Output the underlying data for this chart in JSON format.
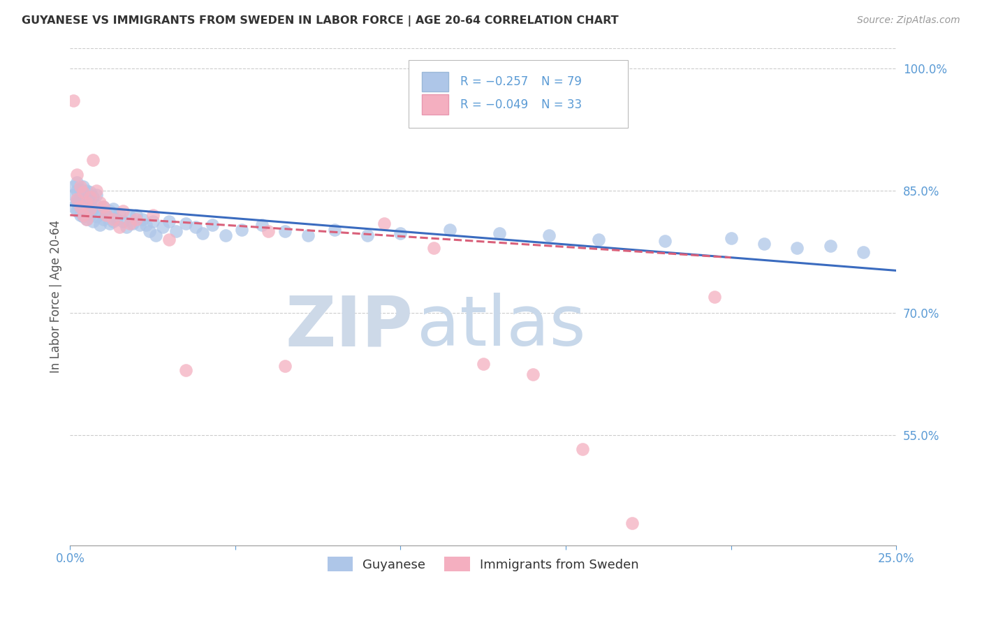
{
  "title": "GUYANESE VS IMMIGRANTS FROM SWEDEN IN LABOR FORCE | AGE 20-64 CORRELATION CHART",
  "source_text": "Source: ZipAtlas.com",
  "ylabel": "In Labor Force | Age 20-64",
  "xlim": [
    0.0,
    0.25
  ],
  "ylim": [
    0.415,
    1.025
  ],
  "xticks": [
    0.0,
    0.05,
    0.1,
    0.15,
    0.2,
    0.25
  ],
  "xtick_labels": [
    "0.0%",
    "",
    "",
    "",
    "",
    "25.0%"
  ],
  "yticks": [
    0.55,
    0.7,
    0.85,
    1.0
  ],
  "ytick_labels": [
    "55.0%",
    "70.0%",
    "85.0%",
    "100.0%"
  ],
  "blue_color": "#aec6e8",
  "pink_color": "#f4afc0",
  "blue_line_color": "#3a6bbf",
  "pink_line_color": "#d9607a",
  "title_color": "#333333",
  "axis_color": "#5b9bd5",
  "watermark_color_zip": "#cdd9e8",
  "watermark_color_atlas": "#c8d8ea",
  "legend_R_blue": "R = −0.257",
  "legend_N_blue": "N = 79",
  "legend_R_pink": "R = −0.049",
  "legend_N_pink": "N = 33",
  "legend_label_blue": "Guyanese",
  "legend_label_pink": "Immigrants from Sweden",
  "blue_scatter_x": [
    0.001,
    0.001,
    0.001,
    0.002,
    0.002,
    0.002,
    0.002,
    0.002,
    0.003,
    0.003,
    0.003,
    0.003,
    0.003,
    0.004,
    0.004,
    0.004,
    0.004,
    0.004,
    0.005,
    0.005,
    0.005,
    0.005,
    0.005,
    0.006,
    0.006,
    0.006,
    0.007,
    0.007,
    0.007,
    0.008,
    0.008,
    0.008,
    0.009,
    0.009,
    0.01,
    0.01,
    0.011,
    0.012,
    0.012,
    0.013,
    0.013,
    0.014,
    0.015,
    0.016,
    0.017,
    0.018,
    0.019,
    0.02,
    0.021,
    0.022,
    0.023,
    0.024,
    0.025,
    0.026,
    0.028,
    0.03,
    0.032,
    0.035,
    0.038,
    0.04,
    0.043,
    0.047,
    0.052,
    0.058,
    0.065,
    0.072,
    0.08,
    0.09,
    0.1,
    0.115,
    0.13,
    0.145,
    0.16,
    0.18,
    0.2,
    0.21,
    0.22,
    0.23,
    0.24
  ],
  "blue_scatter_y": [
    0.83,
    0.845,
    0.855,
    0.825,
    0.838,
    0.85,
    0.86,
    0.835,
    0.82,
    0.84,
    0.852,
    0.83,
    0.842,
    0.818,
    0.832,
    0.845,
    0.855,
    0.822,
    0.815,
    0.828,
    0.84,
    0.85,
    0.833,
    0.82,
    0.835,
    0.848,
    0.812,
    0.828,
    0.842,
    0.818,
    0.832,
    0.845,
    0.808,
    0.825,
    0.815,
    0.83,
    0.82,
    0.81,
    0.825,
    0.812,
    0.828,
    0.815,
    0.822,
    0.812,
    0.805,
    0.818,
    0.81,
    0.82,
    0.808,
    0.815,
    0.808,
    0.8,
    0.812,
    0.795,
    0.805,
    0.812,
    0.8,
    0.81,
    0.805,
    0.798,
    0.808,
    0.795,
    0.802,
    0.808,
    0.8,
    0.795,
    0.802,
    0.795,
    0.798,
    0.802,
    0.798,
    0.795,
    0.79,
    0.788,
    0.792,
    0.785,
    0.78,
    0.782,
    0.775
  ],
  "pink_scatter_x": [
    0.001,
    0.002,
    0.002,
    0.003,
    0.003,
    0.004,
    0.004,
    0.005,
    0.005,
    0.006,
    0.006,
    0.007,
    0.008,
    0.009,
    0.01,
    0.011,
    0.013,
    0.015,
    0.016,
    0.018,
    0.02,
    0.025,
    0.03,
    0.035,
    0.06,
    0.065,
    0.095,
    0.11,
    0.125,
    0.14,
    0.155,
    0.17,
    0.195
  ],
  "pink_scatter_y": [
    0.96,
    0.84,
    0.87,
    0.83,
    0.855,
    0.82,
    0.848,
    0.835,
    0.815,
    0.828,
    0.842,
    0.888,
    0.85,
    0.835,
    0.83,
    0.82,
    0.815,
    0.805,
    0.825,
    0.81,
    0.815,
    0.82,
    0.79,
    0.63,
    0.8,
    0.635,
    0.81,
    0.78,
    0.638,
    0.625,
    0.533,
    0.442,
    0.72
  ],
  "blue_trend_x0": 0.0,
  "blue_trend_x1": 0.25,
  "blue_trend_y0": 0.832,
  "blue_trend_y1": 0.752,
  "pink_trend_x0": 0.0,
  "pink_trend_x1": 0.2,
  "pink_trend_y0": 0.82,
  "pink_trend_y1": 0.768
}
